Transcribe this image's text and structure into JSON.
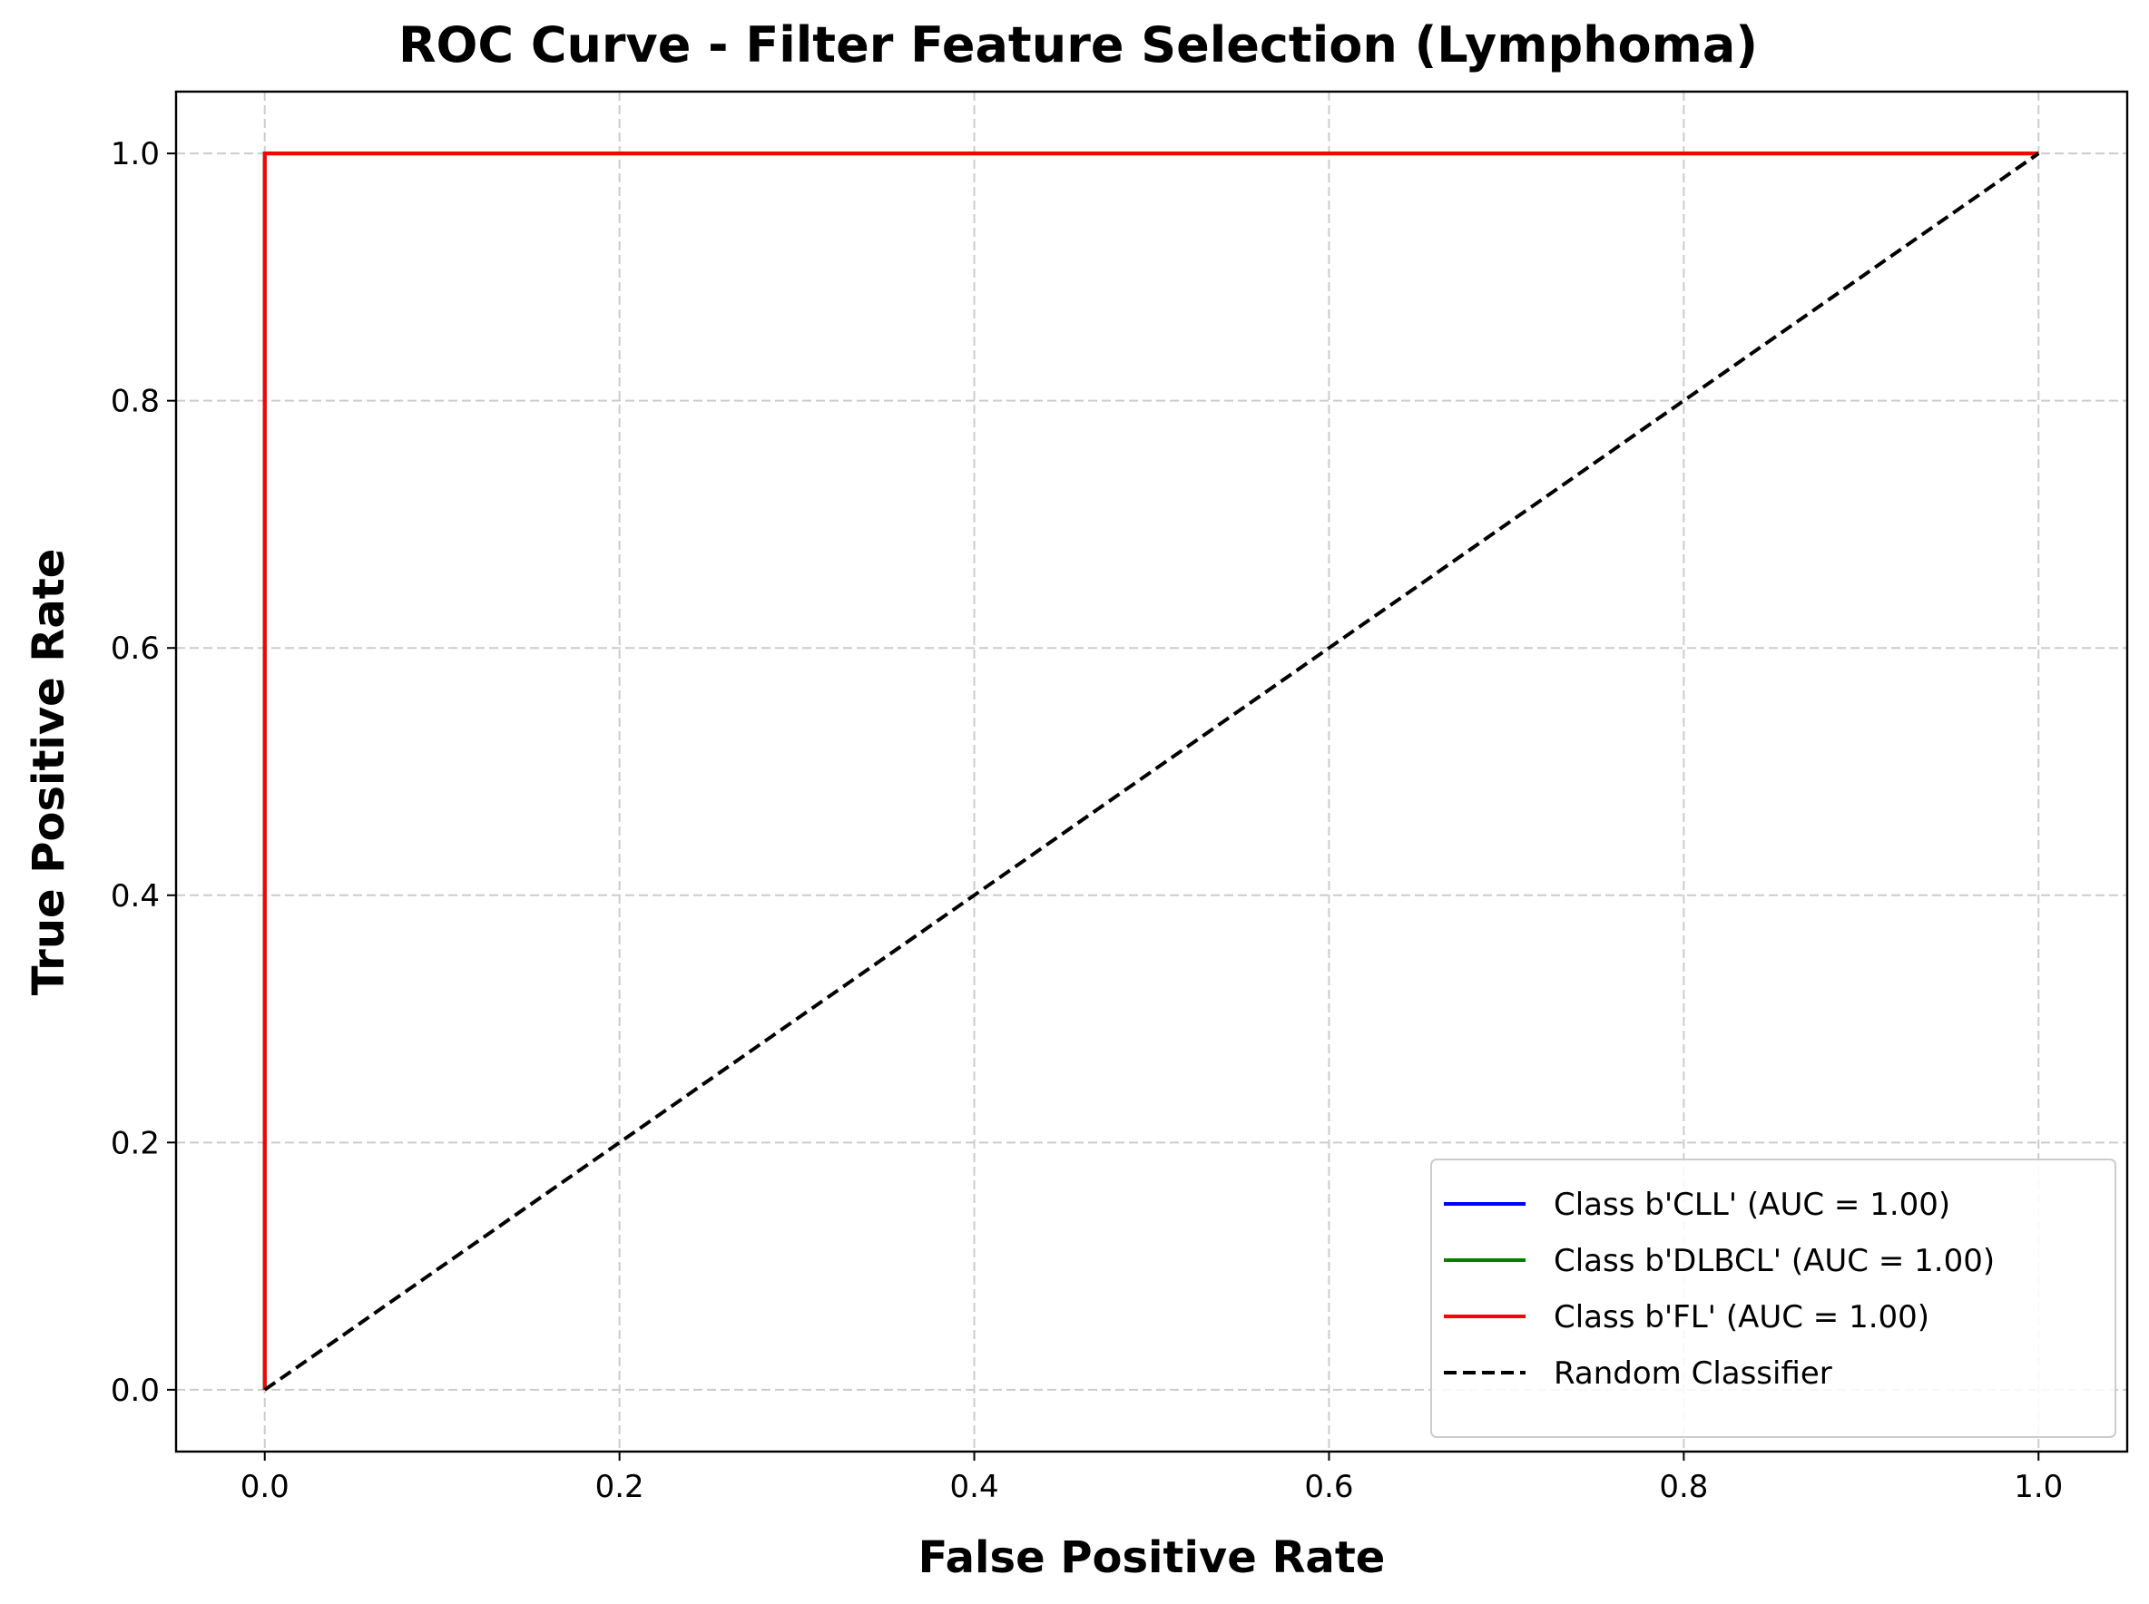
{
  "chart_data": {
    "type": "line",
    "title": "ROC Curve - Filter Feature Selection (Lymphoma)",
    "xlabel": "False Positive Rate",
    "ylabel": "True Positive Rate",
    "xlim": [
      -0.05,
      1.05
    ],
    "ylim": [
      -0.05,
      1.05
    ],
    "xticks": [
      0.0,
      0.2,
      0.4,
      0.6,
      0.8,
      1.0
    ],
    "yticks": [
      0.0,
      0.2,
      0.4,
      0.6,
      0.8,
      1.0
    ],
    "xtick_labels": [
      "0.0",
      "0.2",
      "0.4",
      "0.6",
      "0.8",
      "1.0"
    ],
    "ytick_labels": [
      "0.0",
      "0.2",
      "0.4",
      "0.6",
      "0.8",
      "1.0"
    ],
    "grid": true,
    "grid_style": "dashed",
    "legend_position": "lower-right",
    "series": [
      {
        "name": "Class b'CLL' (AUC = 1.00)",
        "color": "#0000ff",
        "style": "solid",
        "x": [
          0.0,
          0.0,
          1.0
        ],
        "y": [
          0.0,
          1.0,
          1.0
        ]
      },
      {
        "name": "Class b'DLBCL' (AUC = 1.00)",
        "color": "#008000",
        "style": "solid",
        "x": [
          0.0,
          0.0,
          1.0
        ],
        "y": [
          0.0,
          1.0,
          1.0
        ]
      },
      {
        "name": "Class b'FL' (AUC = 1.00)",
        "color": "#ff0000",
        "style": "solid",
        "x": [
          0.0,
          0.0,
          1.0
        ],
        "y": [
          0.0,
          1.0,
          1.0
        ]
      },
      {
        "name": "Random Classifier",
        "color": "#000000",
        "style": "dashed",
        "x": [
          0.0,
          1.0
        ],
        "y": [
          0.0,
          1.0
        ]
      }
    ]
  }
}
